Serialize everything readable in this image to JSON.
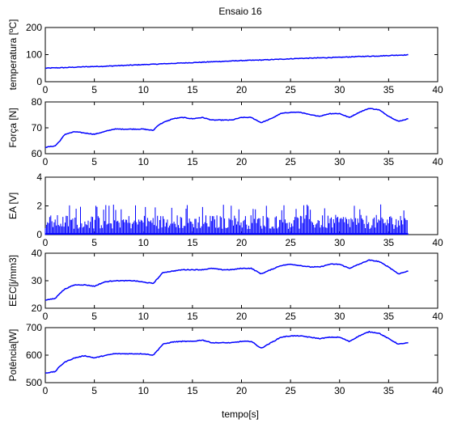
{
  "figure": {
    "title": "Ensaio 16",
    "xlabel": "tempo[s]"
  },
  "chart_data": [
    {
      "type": "line",
      "ylabel": "temperatura [ºC]",
      "xlim": [
        0,
        40
      ],
      "ylim": [
        0,
        200
      ],
      "xticks": [
        0,
        5,
        10,
        15,
        20,
        25,
        30,
        35,
        40
      ],
      "yticks": [
        0,
        100,
        200
      ],
      "color": "#0000ff",
      "x": [
        0,
        2,
        4,
        6,
        8,
        10,
        12,
        14,
        16,
        18,
        20,
        22,
        24,
        26,
        28,
        30,
        32,
        34,
        36,
        37
      ],
      "y": [
        50,
        52,
        55,
        57,
        60,
        63,
        66,
        69,
        72,
        75,
        78,
        80,
        83,
        86,
        88,
        90,
        93,
        95,
        98,
        99
      ]
    },
    {
      "type": "line",
      "ylabel": "Força [N]",
      "xlim": [
        0,
        40
      ],
      "ylim": [
        60,
        80
      ],
      "xticks": [
        0,
        5,
        10,
        15,
        20,
        25,
        30,
        35,
        40
      ],
      "yticks": [
        60,
        70,
        80
      ],
      "color": "#0000ff",
      "x": [
        0,
        1,
        1.5,
        2,
        3,
        4,
        5,
        6,
        7,
        8,
        9,
        10,
        11,
        11.5,
        12,
        13,
        14,
        15,
        16,
        17,
        18,
        19,
        20,
        21,
        22,
        23,
        24,
        25,
        26,
        27,
        28,
        29,
        30,
        31,
        32,
        33,
        34,
        35,
        36,
        37
      ],
      "y": [
        62.5,
        63,
        65,
        67.5,
        68.5,
        68,
        67.5,
        68.5,
        69.5,
        69.5,
        69.5,
        69.5,
        69,
        71,
        72,
        73.5,
        74,
        73.5,
        74,
        73,
        73,
        73,
        74,
        74,
        72,
        73.5,
        75.5,
        76,
        76,
        75,
        74.5,
        75.5,
        75.5,
        74,
        76,
        77.5,
        77,
        74.5,
        72.5,
        73.5
      ]
    },
    {
      "type": "bar",
      "ylabel": "EA [V]",
      "xlim": [
        0,
        40
      ],
      "ylim": [
        0,
        4
      ],
      "xticks": [
        0,
        5,
        10,
        15,
        20,
        25,
        30,
        35,
        40
      ],
      "yticks": [
        0,
        2,
        4
      ],
      "color": "#0000ff",
      "duration": 37,
      "mean_peak": 1.1,
      "max_peak": 2.1
    },
    {
      "type": "line",
      "ylabel": "EEC[j/mm3]",
      "xlim": [
        0,
        40
      ],
      "ylim": [
        20,
        40
      ],
      "xticks": [
        0,
        5,
        10,
        15,
        20,
        25,
        30,
        35,
        40
      ],
      "yticks": [
        20,
        30,
        40
      ],
      "color": "#0000ff",
      "x": [
        0,
        1,
        1.5,
        2,
        3,
        4,
        5,
        6,
        7,
        8,
        9,
        10,
        11,
        11.5,
        12,
        13,
        14,
        15,
        16,
        17,
        18,
        19,
        20,
        21,
        22,
        23,
        24,
        25,
        26,
        27,
        28,
        29,
        30,
        31,
        32,
        33,
        34,
        35,
        36,
        37
      ],
      "y": [
        23,
        23.5,
        25.5,
        27,
        28.5,
        28.5,
        28,
        29.5,
        30,
        30,
        30,
        29.5,
        29,
        31,
        33,
        33.5,
        34,
        34,
        34,
        34.5,
        34,
        34,
        34.5,
        34.5,
        32.5,
        34,
        35.5,
        36,
        35.5,
        35,
        35,
        36,
        36,
        34.5,
        36,
        37.5,
        37,
        35,
        32.5,
        33.5
      ]
    },
    {
      "type": "line",
      "ylabel": "Potência[W]",
      "xlim": [
        0,
        40
      ],
      "ylim": [
        500,
        700
      ],
      "xticks": [
        0,
        5,
        10,
        15,
        20,
        25,
        30,
        35,
        40
      ],
      "yticks": [
        500,
        600,
        700
      ],
      "color": "#0000ff",
      "x": [
        0,
        1,
        1.5,
        2,
        3,
        4,
        5,
        6,
        7,
        8,
        9,
        10,
        11,
        11.5,
        12,
        13,
        14,
        15,
        16,
        17,
        18,
        19,
        20,
        21,
        22,
        23,
        24,
        25,
        26,
        27,
        28,
        29,
        30,
        31,
        32,
        33,
        34,
        35,
        36,
        37
      ],
      "y": [
        535,
        540,
        560,
        575,
        590,
        598,
        590,
        598,
        605,
        605,
        605,
        605,
        600,
        620,
        640,
        648,
        650,
        650,
        655,
        645,
        645,
        645,
        650,
        650,
        625,
        645,
        665,
        670,
        670,
        665,
        660,
        665,
        665,
        650,
        670,
        685,
        680,
        660,
        640,
        645
      ]
    }
  ]
}
